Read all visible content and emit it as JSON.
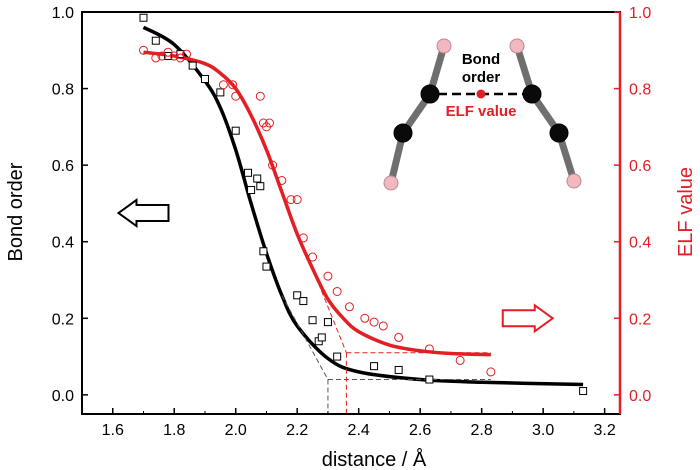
{
  "colors": {
    "left_series": "#000000",
    "right_series": "#e31e24",
    "axis_left": "#000000",
    "axis_right": "#e31e24",
    "atom_carbon": "#0a0a0a",
    "atom_hydrogen": "#f2b8c0",
    "bond": "#6f6f6f"
  },
  "chart_data": {
    "type": "scatter",
    "xlabel": "distance / Å",
    "ylabel_left": "Bond order",
    "ylabel_right": "ELF value",
    "xlim": [
      1.5,
      3.25
    ],
    "ylim_left": [
      -0.05,
      1.0
    ],
    "ylim_right": [
      -0.05,
      1.0
    ],
    "x_ticks": [
      "1.6",
      "1.8",
      "2.0",
      "2.2",
      "2.4",
      "2.6",
      "2.8",
      "3.0",
      "3.2"
    ],
    "y_ticks_left": [
      "0.0",
      "0.2",
      "0.4",
      "0.6",
      "0.8",
      "1.0"
    ],
    "y_ticks_right": [
      "0.0",
      "0.2",
      "0.4",
      "0.6",
      "0.8",
      "1.0"
    ],
    "grid": false,
    "series": [
      {
        "name": "Bond order",
        "axis": "left",
        "marker": "open-square",
        "points": [
          [
            1.7,
            0.985
          ],
          [
            1.74,
            0.925
          ],
          [
            1.78,
            0.885
          ],
          [
            1.82,
            0.89
          ],
          [
            1.86,
            0.86
          ],
          [
            1.9,
            0.825
          ],
          [
            1.95,
            0.79
          ],
          [
            2.0,
            0.69
          ],
          [
            2.04,
            0.58
          ],
          [
            2.05,
            0.535
          ],
          [
            2.07,
            0.565
          ],
          [
            2.08,
            0.545
          ],
          [
            2.09,
            0.375
          ],
          [
            2.1,
            0.335
          ],
          [
            2.2,
            0.26
          ],
          [
            2.22,
            0.245
          ],
          [
            2.25,
            0.195
          ],
          [
            2.27,
            0.14
          ],
          [
            2.28,
            0.15
          ],
          [
            2.3,
            0.19
          ],
          [
            2.33,
            0.1
          ],
          [
            2.45,
            0.075
          ],
          [
            2.53,
            0.065
          ],
          [
            2.63,
            0.04
          ],
          [
            3.13,
            0.01
          ]
        ],
        "fit": [
          [
            1.7,
            0.96
          ],
          [
            1.8,
            0.915
          ],
          [
            1.9,
            0.82
          ],
          [
            1.95,
            0.75
          ],
          [
            2.0,
            0.64
          ],
          [
            2.05,
            0.5
          ],
          [
            2.1,
            0.37
          ],
          [
            2.15,
            0.26
          ],
          [
            2.2,
            0.18
          ],
          [
            2.3,
            0.095
          ],
          [
            2.4,
            0.06
          ],
          [
            2.6,
            0.04
          ],
          [
            2.8,
            0.033
          ],
          [
            3.13,
            0.027
          ]
        ]
      },
      {
        "name": "ELF value",
        "axis": "right",
        "marker": "open-circle",
        "points": [
          [
            1.7,
            0.9
          ],
          [
            1.74,
            0.88
          ],
          [
            1.76,
            0.885
          ],
          [
            1.78,
            0.895
          ],
          [
            1.8,
            0.885
          ],
          [
            1.82,
            0.88
          ],
          [
            1.84,
            0.89
          ],
          [
            1.96,
            0.81
          ],
          [
            1.99,
            0.81
          ],
          [
            2.0,
            0.78
          ],
          [
            2.08,
            0.78
          ],
          [
            2.09,
            0.71
          ],
          [
            2.1,
            0.7
          ],
          [
            2.11,
            0.71
          ],
          [
            2.12,
            0.6
          ],
          [
            2.15,
            0.56
          ],
          [
            2.18,
            0.51
          ],
          [
            2.2,
            0.51
          ],
          [
            2.22,
            0.41
          ],
          [
            2.25,
            0.36
          ],
          [
            2.3,
            0.31
          ],
          [
            2.33,
            0.27
          ],
          [
            2.37,
            0.23
          ],
          [
            2.42,
            0.2
          ],
          [
            2.45,
            0.19
          ],
          [
            2.48,
            0.18
          ],
          [
            2.53,
            0.15
          ],
          [
            2.63,
            0.12
          ],
          [
            2.73,
            0.09
          ],
          [
            2.83,
            0.06
          ]
        ],
        "fit": [
          [
            1.7,
            0.895
          ],
          [
            1.8,
            0.885
          ],
          [
            1.9,
            0.865
          ],
          [
            1.95,
            0.84
          ],
          [
            2.0,
            0.8
          ],
          [
            2.05,
            0.73
          ],
          [
            2.1,
            0.64
          ],
          [
            2.15,
            0.53
          ],
          [
            2.2,
            0.42
          ],
          [
            2.25,
            0.33
          ],
          [
            2.3,
            0.25
          ],
          [
            2.35,
            0.2
          ],
          [
            2.4,
            0.165
          ],
          [
            2.5,
            0.13
          ],
          [
            2.6,
            0.115
          ],
          [
            2.7,
            0.108
          ],
          [
            2.83,
            0.105
          ]
        ]
      }
    ],
    "guide_lines": [
      {
        "color": "black",
        "points": [
          [
            2.15,
            0.26
          ],
          [
            2.3,
            0.04
          ]
        ]
      },
      {
        "color": "black",
        "points": [
          [
            2.3,
            0.04
          ],
          [
            2.83,
            0.04
          ]
        ]
      },
      {
        "color": "black",
        "points": [
          [
            2.3,
            0.04
          ],
          [
            2.3,
            -0.05
          ]
        ]
      },
      {
        "color": "red",
        "points": [
          [
            2.25,
            0.33
          ],
          [
            2.36,
            0.11
          ]
        ]
      },
      {
        "color": "red",
        "points": [
          [
            2.36,
            0.11
          ],
          [
            2.83,
            0.11
          ]
        ]
      },
      {
        "color": "red",
        "points": [
          [
            2.36,
            0.11
          ],
          [
            2.36,
            -0.05
          ]
        ]
      }
    ],
    "annotations": [
      {
        "type": "arrow",
        "direction": "left",
        "color": "black",
        "x": 1.7,
        "y": 0.475
      },
      {
        "type": "arrow",
        "direction": "right",
        "color": "red",
        "x": 2.95,
        "y": 0.2
      }
    ]
  },
  "inset": {
    "label_bond": "Bond",
    "label_order": "order",
    "label_elf": "ELF value"
  }
}
